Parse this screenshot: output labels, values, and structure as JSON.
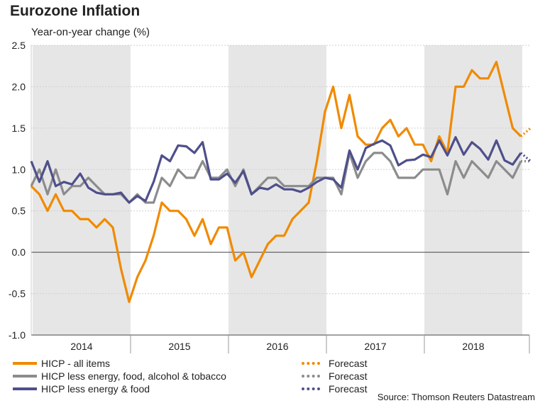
{
  "colors": {
    "headline": "#f08a00",
    "core": "#8c8c8c",
    "exfood": "#4f4f8c",
    "shade": "#e6e6e6",
    "grid": "#cfcfcf"
  },
  "chart_data": {
    "type": "line",
    "title": "Eurozone Inflation",
    "subtitle": "Year-on-year change (%)",
    "ylim": [
      -1.0,
      2.5
    ],
    "yticks": [
      "2.5",
      "2.0",
      "1.5",
      "1.0",
      "0.5",
      "0.0",
      "-0.5",
      "-1.0"
    ],
    "ytick_values": [
      2.5,
      2.0,
      1.5,
      1.0,
      0.5,
      0.0,
      -0.5,
      -1.0
    ],
    "years": [
      "2014",
      "2015",
      "2016",
      "2017",
      "2018"
    ],
    "shaded_years": [
      "2014",
      "2016",
      "2018"
    ],
    "x_start": "Jan 2014",
    "x_end": "Mar 2019",
    "x_unit": "months since Jan 2014",
    "series": [
      {
        "name": "HICP - all items",
        "color_key": "headline",
        "values": [
          0.8,
          0.7,
          0.5,
          0.7,
          0.5,
          0.5,
          0.4,
          0.4,
          0.3,
          0.4,
          0.3,
          -0.2,
          -0.6,
          -0.3,
          -0.1,
          0.2,
          0.6,
          0.5,
          0.5,
          0.4,
          0.2,
          0.4,
          0.1,
          0.3,
          0.3,
          -0.1,
          0.0,
          -0.3,
          -0.1,
          0.1,
          0.2,
          0.2,
          0.4,
          0.5,
          0.6,
          1.1,
          1.7,
          2.0,
          1.5,
          1.9,
          1.4,
          1.3,
          1.3,
          1.5,
          1.6,
          1.4,
          1.5,
          1.3,
          1.3,
          1.1,
          1.4,
          1.2,
          2.0,
          2.0,
          2.2,
          2.1,
          2.1,
          2.3,
          1.9,
          1.5,
          1.4
        ],
        "forecast": [
          1.4,
          1.5
        ]
      },
      {
        "name": "HICP less energy, food, alcohol & tobacco",
        "color_key": "core",
        "values": [
          0.8,
          1.0,
          0.7,
          1.0,
          0.7,
          0.8,
          0.8,
          0.9,
          0.8,
          0.7,
          0.7,
          0.7,
          0.6,
          0.7,
          0.6,
          0.6,
          0.9,
          0.8,
          1.0,
          0.9,
          0.9,
          1.1,
          0.9,
          0.9,
          1.0,
          0.8,
          1.0,
          0.7,
          0.8,
          0.9,
          0.9,
          0.8,
          0.8,
          0.8,
          0.8,
          0.9,
          0.9,
          0.9,
          0.7,
          1.2,
          0.9,
          1.1,
          1.2,
          1.2,
          1.1,
          0.9,
          0.9,
          0.9,
          1.0,
          1.0,
          1.0,
          0.7,
          1.1,
          0.9,
          1.1,
          1.0,
          0.9,
          1.1,
          1.0,
          0.9,
          1.1
        ],
        "forecast": [
          1.1,
          1.1
        ]
      },
      {
        "name": "HICP less energy & food",
        "color_key": "exfood",
        "values": [
          1.1,
          0.85,
          1.1,
          0.8,
          0.85,
          0.82,
          0.95,
          0.78,
          0.72,
          0.7,
          0.7,
          0.72,
          0.6,
          0.68,
          0.62,
          0.85,
          1.17,
          1.1,
          1.29,
          1.28,
          1.2,
          1.33,
          0.88,
          0.88,
          0.95,
          0.84,
          0.98,
          0.7,
          0.78,
          0.76,
          0.82,
          0.76,
          0.76,
          0.73,
          0.78,
          0.85,
          0.9,
          0.88,
          0.78,
          1.23,
          1.0,
          1.26,
          1.31,
          1.35,
          1.29,
          1.05,
          1.11,
          1.12,
          1.18,
          1.15,
          1.35,
          1.17,
          1.39,
          1.18,
          1.33,
          1.25,
          1.12,
          1.35,
          1.11,
          1.06,
          1.2
        ],
        "forecast": [
          1.2,
          1.1
        ]
      }
    ],
    "legend_forecast_label": "Forecast",
    "source": "Source: Thomson Reuters Datastream"
  }
}
